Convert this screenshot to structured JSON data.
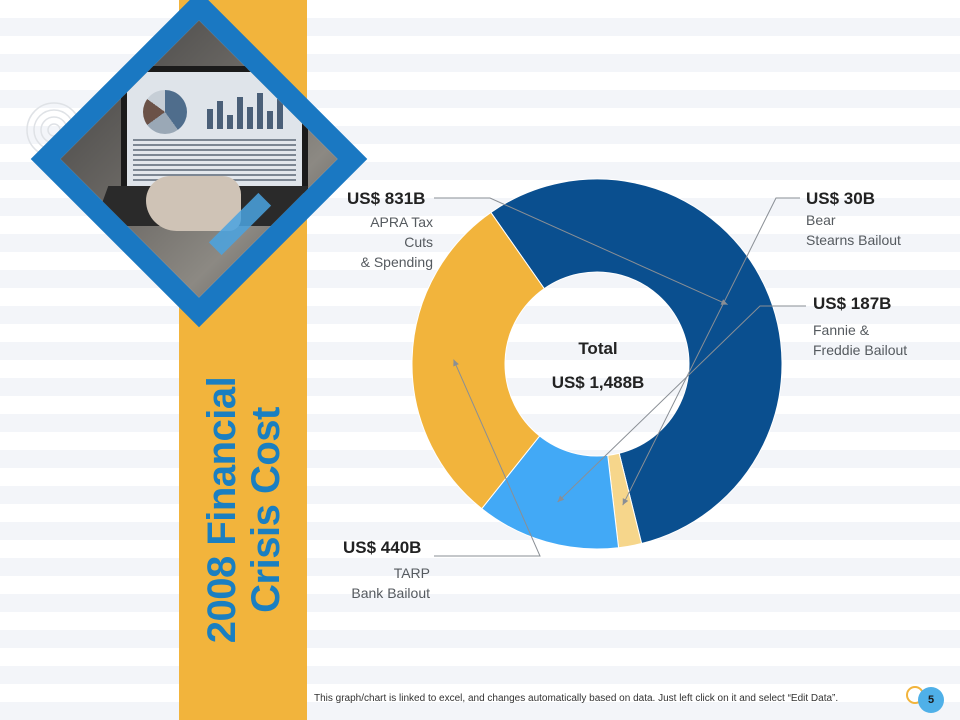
{
  "slide": {
    "title_line1": "2008 Financial",
    "title_line2": "Crisis Cost",
    "footer_note": "This graph/chart is linked to excel, and changes automatically  based on data. Just left click on it and select “Edit Data”.",
    "page_number": "5"
  },
  "colors": {
    "yellow": "#f2b43c",
    "dark_blue": "#0a4f8f",
    "light_blue": "#42a9f6",
    "pale_yellow": "#f6d68b",
    "title_blue": "#1a7fc1"
  },
  "chart_data": {
    "type": "pie",
    "donut": true,
    "center_label": "Total",
    "center_value": "US$ 1,488B",
    "slices": [
      {
        "label_lines": [
          "APRA Tax Cuts",
          "& Spending"
        ],
        "value": 831,
        "display": "US$ 831B",
        "color": "#0a4f8f"
      },
      {
        "label_lines": [
          "Bear",
          "Stearns Bailout"
        ],
        "value": 30,
        "display": "US$ 30B",
        "color": "#f6d68b"
      },
      {
        "label_lines": [
          "Fannie &",
          "Freddie Bailout"
        ],
        "value": 187,
        "display": "US$ 187B",
        "color": "#42a9f6"
      },
      {
        "label_lines": [
          "TARP",
          "Bank Bailout"
        ],
        "value": 440,
        "display": "US$ 440B",
        "color": "#f2b43c"
      }
    ]
  },
  "icons": {
    "deco": "concentric-circles-icon",
    "photo": "laptop-analytics-photo"
  }
}
